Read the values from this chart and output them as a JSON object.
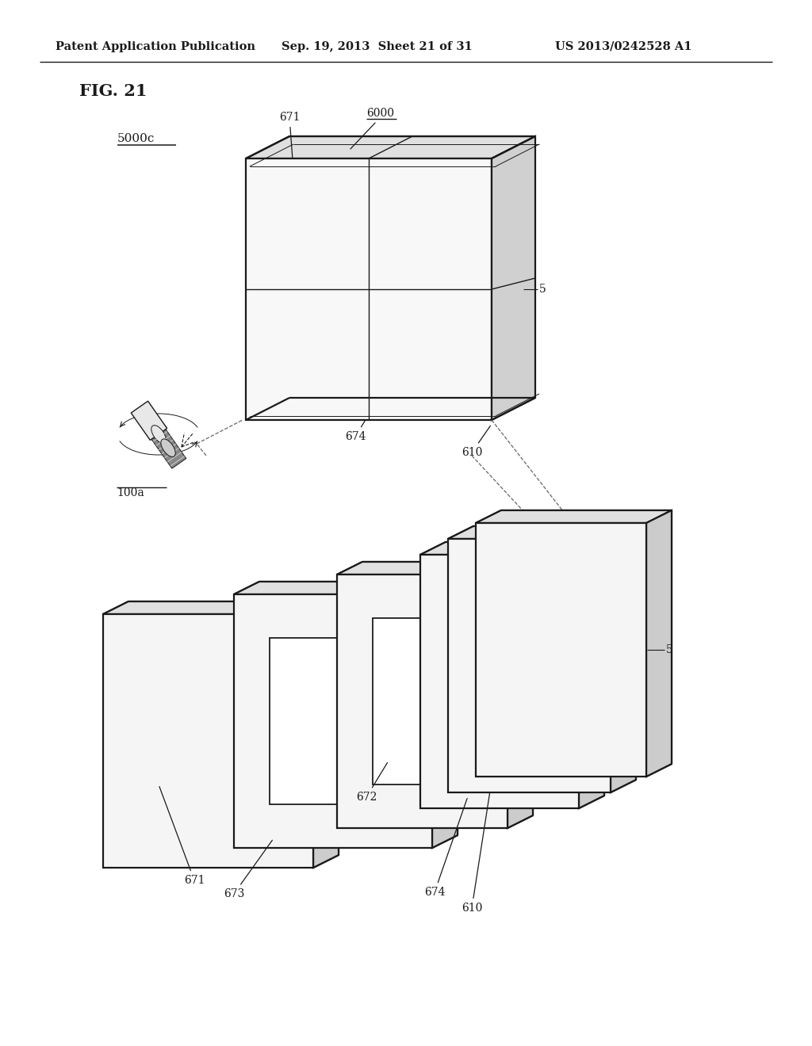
{
  "title": "FIG. 21",
  "header_left": "Patent Application Publication",
  "header_mid": "Sep. 19, 2013  Sheet 21 of 31",
  "header_right": "US 2013/0242528 A1",
  "bg_color": "#ffffff",
  "line_color": "#1a1a1a",
  "font_size_header": 10.5,
  "font_size_title": 15,
  "font_size_label": 10
}
